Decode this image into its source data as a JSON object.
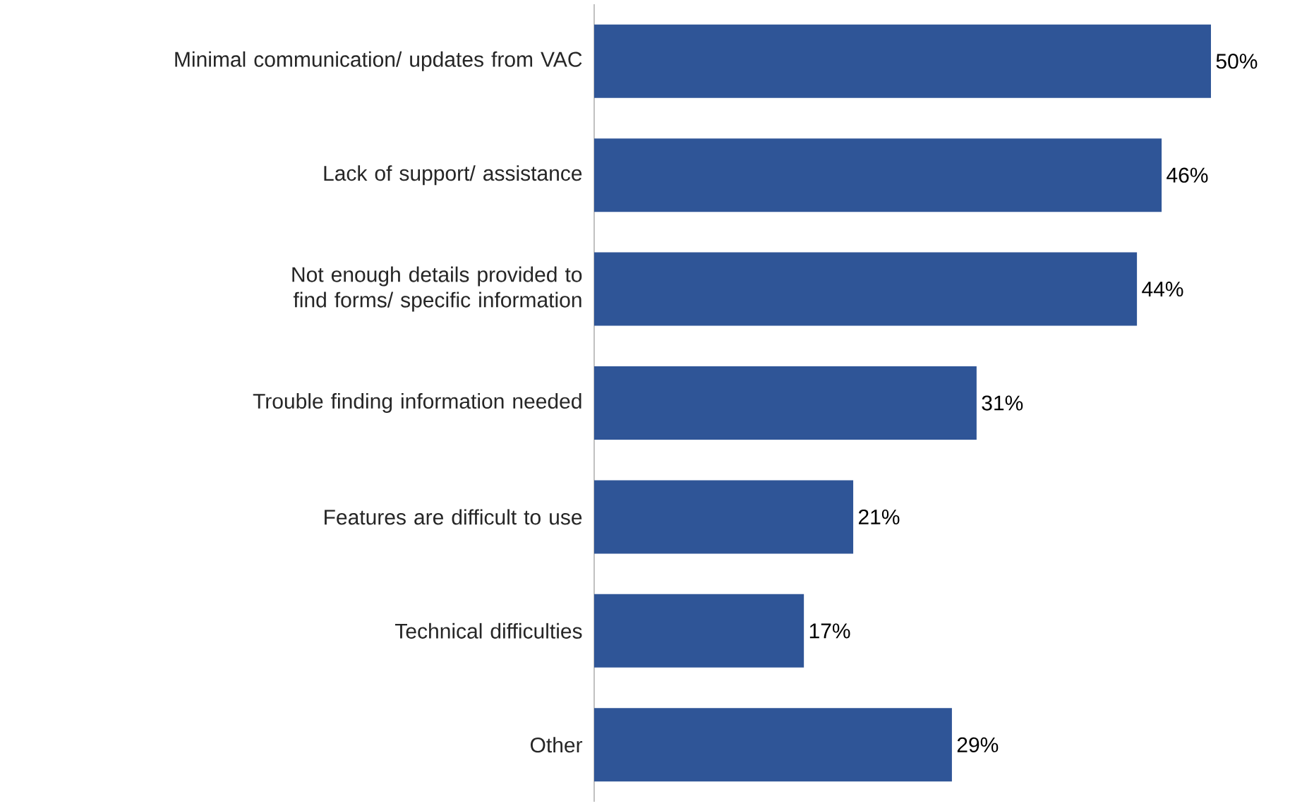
{
  "chart_data": {
    "type": "bar",
    "orientation": "horizontal",
    "color": "#2f5597",
    "categories": [
      "Minimal communication/ updates from VAC",
      "Lack of support/ assistance",
      "Not enough details provided to find forms/ specific information",
      "Trouble finding information needed",
      "Features are difficult to use",
      "Technical difficulties",
      "Other"
    ],
    "values": [
      50,
      46,
      44,
      31,
      21,
      17,
      29
    ],
    "value_labels": [
      "50%",
      "46%",
      "44%",
      "31%",
      "21%",
      "17%",
      "29%"
    ]
  }
}
